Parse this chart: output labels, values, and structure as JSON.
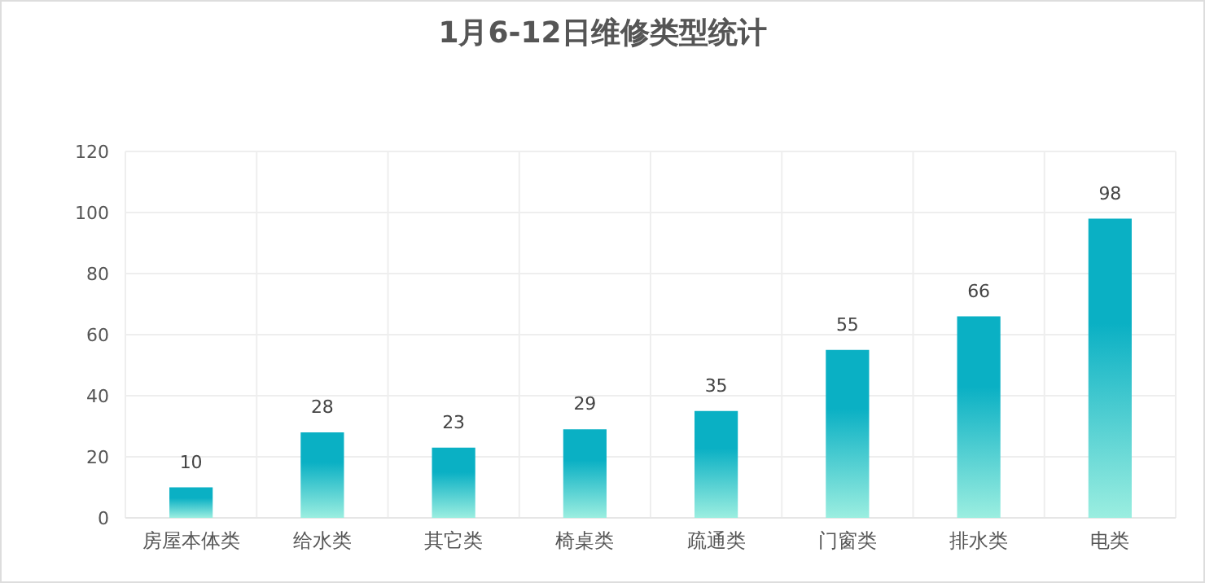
{
  "chart_data": {
    "type": "bar",
    "title": "1月6-12日维修类型统计",
    "categories": [
      "房屋本体类",
      "给水类",
      "其它类",
      "椅桌类",
      "疏通类",
      "门窗类",
      "排水类",
      "电类"
    ],
    "values": [
      10,
      28,
      23,
      29,
      35,
      55,
      66,
      98
    ],
    "color": "#0ab0c4",
    "ylim": [
      0,
      120
    ],
    "yticks": [
      0,
      20,
      40,
      60,
      80,
      100,
      120
    ],
    "grid": true,
    "data_labels": true
  }
}
